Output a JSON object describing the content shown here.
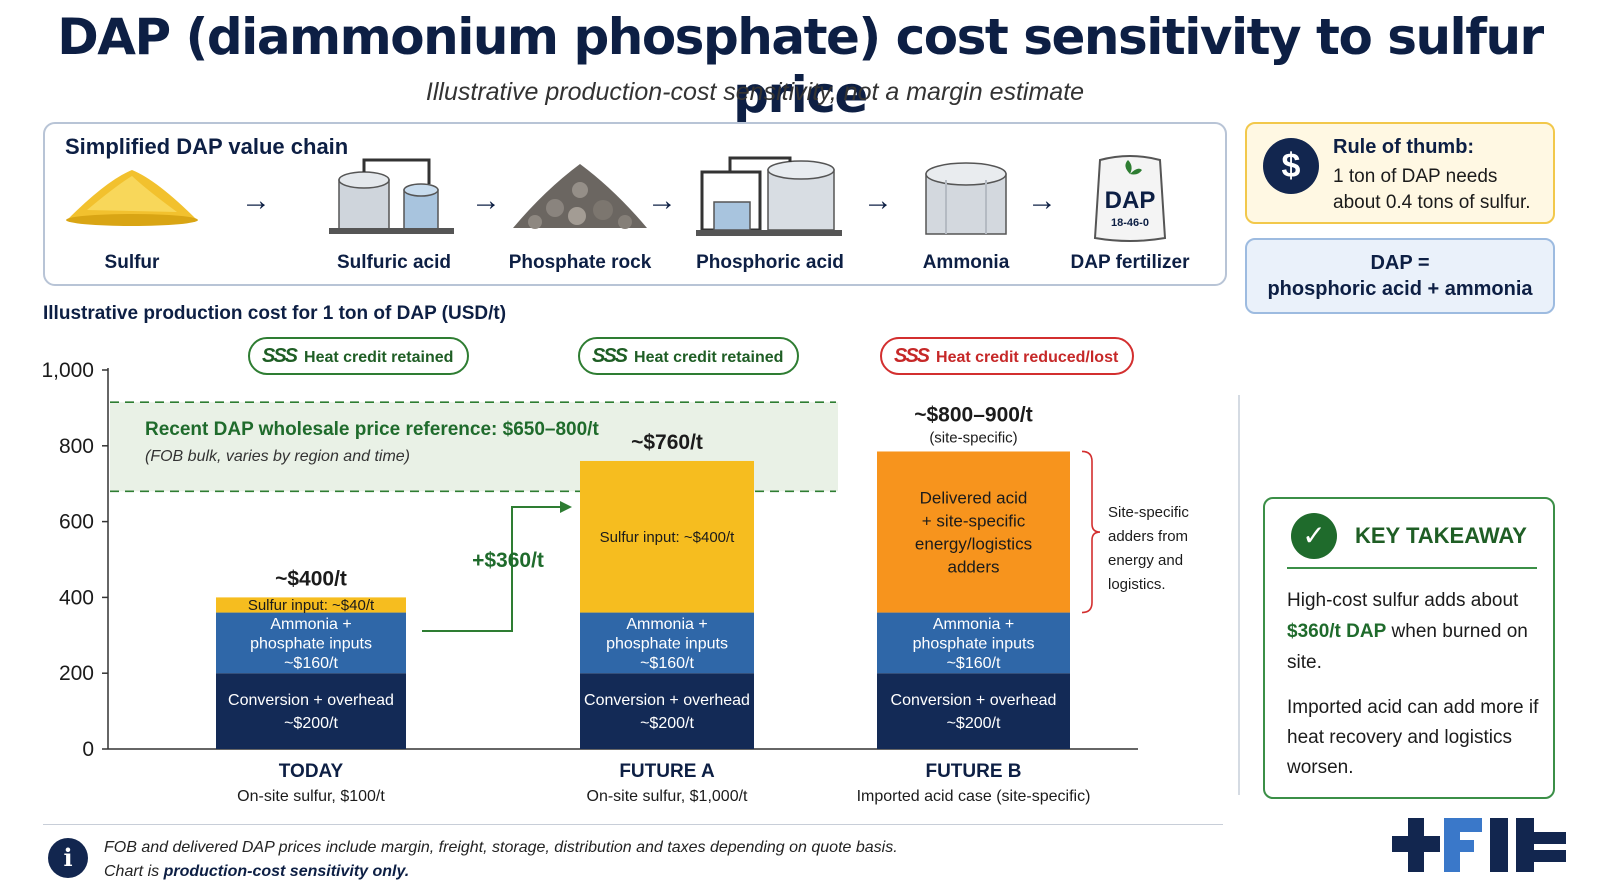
{
  "title": "DAP (diammonium phosphate) cost sensitivity to sulfur price",
  "subtitle": "Illustrative production-cost sensitivity, not a margin estimate",
  "value_chain": {
    "title": "Simplified DAP value chain",
    "items": [
      {
        "label": "Sulfur",
        "icon": "sulfur-pile-icon"
      },
      {
        "label": "Sulfuric acid",
        "icon": "acid-plant-icon"
      },
      {
        "label": "Phosphate rock",
        "icon": "rock-pile-icon"
      },
      {
        "label": "Phosphoric acid",
        "icon": "phosphoric-plant-icon"
      },
      {
        "label": "Ammonia",
        "icon": "storage-tank-icon"
      },
      {
        "label": "DAP fertilizer",
        "icon": "fertilizer-bag-icon"
      }
    ],
    "bag_text": "DAP",
    "bag_grade": "18-46-0"
  },
  "rule_of_thumb": {
    "heading": "Rule of thumb:",
    "text": "1 ton of DAP needs about 0.4 tons of sulfur.",
    "icon": "dollar-icon"
  },
  "formula": {
    "line1": "DAP =",
    "line2": "phosphoric acid + ammonia"
  },
  "badges": [
    {
      "text": "Heat credit retained",
      "status": "retained",
      "color": "#2e7d32"
    },
    {
      "text": "Heat credit retained",
      "status": "retained",
      "color": "#2e7d32"
    },
    {
      "text": "Heat credit reduced/lost",
      "status": "lost",
      "color": "#d32f2f"
    }
  ],
  "chart_data": {
    "type": "bar",
    "stacked": true,
    "title": "Illustrative production cost for 1 ton of DAP (USD/t)",
    "ylim": [
      0,
      1000
    ],
    "yticks": [
      "0",
      "200",
      "400",
      "600",
      "800",
      "1,000"
    ],
    "ytick_values": [
      0,
      200,
      400,
      600,
      800,
      1000
    ],
    "categories": [
      "TODAY",
      "FUTURE A",
      "FUTURE B"
    ],
    "category_sublabels": [
      "On-site sulfur, $100/t",
      "On-site sulfur, $1,000/t",
      "Imported acid case (site-specific)"
    ],
    "totals_labels": [
      "~$400/t",
      "~$760/t",
      "~$800–900/t"
    ],
    "total_note_future_b": "(site-specific)",
    "segments": [
      {
        "name": "Conversion + overhead",
        "color": "#132a56",
        "values": [
          200,
          200,
          200
        ],
        "labels": [
          [
            "Conversion + overhead",
            "~$200/t"
          ],
          [
            "Conversion + overhead",
            "~$200/t"
          ],
          [
            "Conversion + overhead",
            "~$200/t"
          ]
        ]
      },
      {
        "name": "Ammonia + phosphate inputs",
        "color": "#2f67a8",
        "values": [
          160,
          160,
          160
        ],
        "labels": [
          [
            "Ammonia +",
            "phosphate inputs",
            "~$160/t"
          ],
          [
            "Ammonia +",
            "phosphate inputs",
            "~$160/t"
          ],
          [
            "Ammonia +",
            "phosphate inputs",
            "~$160/t"
          ]
        ]
      },
      {
        "name": "Sulfur input",
        "color": "#f6bd1f",
        "values": [
          40,
          400,
          0
        ],
        "labels": [
          [
            "Sulfur input: ~$40/t"
          ],
          [
            "Sulfur input: ~$400/t"
          ],
          []
        ]
      },
      {
        "name": "Delivered acid + site-specific energy/logistics adders",
        "color": "#f7941d",
        "values": [
          0,
          0,
          425
        ],
        "labels": [
          [],
          [],
          [
            "Delivered acid",
            "+ site-specific",
            "energy/logistics",
            "adders"
          ]
        ]
      }
    ],
    "reference_band": {
      "range": [
        650,
        800
      ],
      "extent_y": [
        680,
        915
      ],
      "color": "#e9f1e6",
      "title": "Recent DAP wholesale price reference: $650–800/t",
      "note": "(FOB bulk, varies by region and time)"
    },
    "delta": {
      "label": "+$360/t",
      "from": "TODAY",
      "to": "FUTURE A"
    },
    "adders_note": [
      "Site-specific",
      "adders from",
      "energy and",
      "logistics."
    ]
  },
  "takeaway": {
    "heading": "KEY TAKEAWAY",
    "icon": "checkmark-icon",
    "p1_before": "High-cost sulfur adds about ",
    "p1_bold": "$360/t DAP",
    "p1_after": " when burned on site.",
    "p2": "Imported acid can add more if heat recovery and logistics worsen."
  },
  "footer": {
    "icon": "info-icon",
    "line1": "FOB and delivered DAP prices include margin, freight, storage, distribution and taxes depending on quote basis.",
    "line2_before": "Chart is ",
    "line2_bold": "production-cost sensitivity only.",
    "line2_after": ""
  },
  "logo": {
    "icon": "brand-logo-icon",
    "colors": [
      "#12264f",
      "#3a78c9"
    ]
  }
}
